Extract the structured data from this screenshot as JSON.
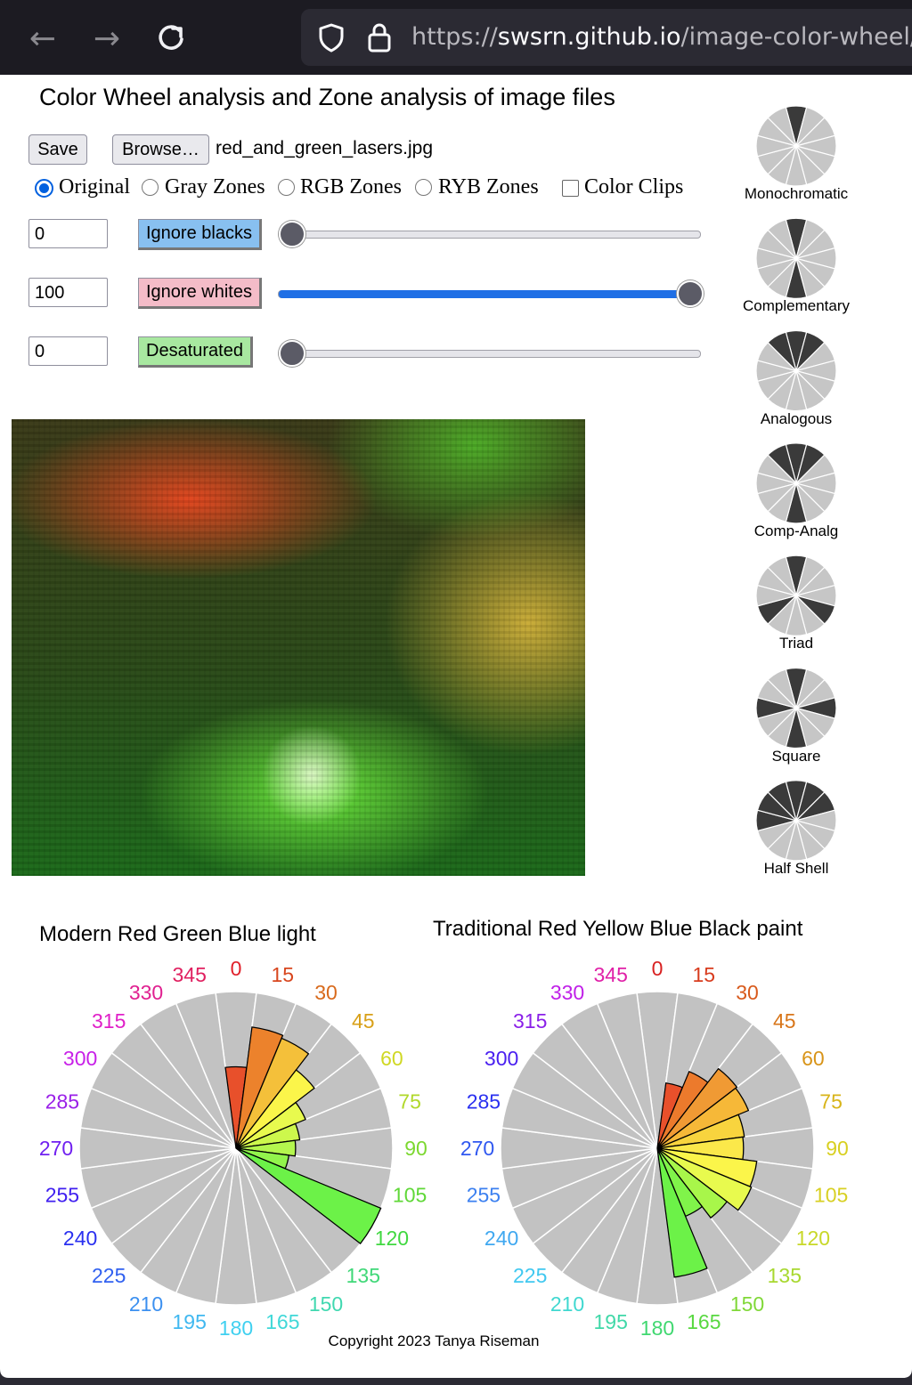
{
  "browser": {
    "back_icon": "arrow-left-icon",
    "forward_icon": "arrow-right-icon",
    "reload_icon": "reload-icon",
    "url_scheme": "https://",
    "url_host": "swsrn.github.io",
    "url_path": "/image-color-wheel/"
  },
  "page": {
    "title": "Color Wheel analysis and Zone analysis of image files",
    "save_label": "Save",
    "browse_label": "Browse…",
    "filename": "red_and_green_lasers.jpg",
    "modes": [
      {
        "label": "Original",
        "selected": true
      },
      {
        "label": "Gray Zones",
        "selected": false
      },
      {
        "label": "RGB Zones",
        "selected": false
      },
      {
        "label": "RYB Zones",
        "selected": false
      }
    ],
    "color_clips_label": "Color Clips",
    "color_clips_checked": false,
    "sliders": [
      {
        "value": "0",
        "label": "Ignore blacks",
        "fraction": 0.0,
        "color": "#88c0f0"
      },
      {
        "value": "100",
        "label": "Ignore whites",
        "fraction": 1.0,
        "color": "#f4bcc8"
      },
      {
        "value": "0",
        "label": "Desaturated",
        "fraction": 0.0,
        "color": "#a8e8a0"
      }
    ]
  },
  "harmonies": [
    {
      "label": "Monochromatic",
      "dark": [
        0
      ]
    },
    {
      "label": "Complementary",
      "dark": [
        0,
        6
      ]
    },
    {
      "label": "Analogous",
      "dark": [
        11,
        0,
        1
      ]
    },
    {
      "label": "Comp-Analg",
      "dark": [
        11,
        0,
        1,
        6
      ]
    },
    {
      "label": "Triad",
      "dark": [
        0,
        4,
        8
      ]
    },
    {
      "label": "Square",
      "dark": [
        0,
        3,
        6,
        9
      ]
    },
    {
      "label": "Half Shell",
      "dark": [
        9,
        10,
        11,
        0,
        1,
        2
      ]
    }
  ],
  "chart_data": [
    {
      "type": "polar-bar",
      "title": "Modern Red Green Blue light",
      "categories": [
        "0",
        "15",
        "30",
        "45",
        "60",
        "75",
        "90",
        "105",
        "120",
        "135",
        "150",
        "165",
        "180",
        "195",
        "210",
        "225",
        "240",
        "255",
        "270",
        "285",
        "300",
        "315",
        "330",
        "345"
      ],
      "values": [
        0.52,
        0.78,
        0.76,
        0.63,
        0.48,
        0.41,
        0.38,
        0.34,
        1.0,
        0,
        0,
        0,
        0,
        0,
        0,
        0,
        0,
        0,
        0,
        0,
        0,
        0,
        0,
        0
      ],
      "bar_colors": [
        "#e8502b",
        "#ec822c",
        "#f4c03a",
        "#fbf54a",
        "#e8fa4e",
        "#cdf84c",
        "#b4f64e",
        "#92f44c",
        "#6cf248"
      ],
      "label_colors": [
        "#e0202a",
        "#d8461e",
        "#d86a1c",
        "#d8a018",
        "#d0d824",
        "#b0d82a",
        "#7cd830",
        "#60d838",
        "#40d840",
        "#40d878",
        "#40d8b0",
        "#40d8d8",
        "#40d0f0",
        "#40b8f0",
        "#3c90f0",
        "#3060f0",
        "#2a30f0",
        "#4020f0",
        "#7020f0",
        "#9a20e8",
        "#c820e8",
        "#e020c8",
        "#e02090",
        "#e02060"
      ]
    },
    {
      "type": "polar-bar",
      "title": "Traditional Red Yellow Blue Black paint",
      "categories": [
        "0",
        "15",
        "30",
        "45",
        "60",
        "75",
        "90",
        "105",
        "120",
        "135",
        "150",
        "165",
        "180",
        "195",
        "210",
        "225",
        "240",
        "255",
        "270",
        "285",
        "300",
        "315",
        "330",
        "345"
      ],
      "values": [
        0,
        0.42,
        0.53,
        0.64,
        0.63,
        0.56,
        0.55,
        0.64,
        0.65,
        0.56,
        0.47,
        0.83,
        0,
        0,
        0,
        0,
        0,
        0,
        0,
        0,
        0,
        0,
        0,
        0
      ],
      "bar_colors": [
        "#ffffff",
        "#e8502b",
        "#ec7a2c",
        "#f09a34",
        "#f6b838",
        "#f8d43e",
        "#fbe84a",
        "#fbf54a",
        "#e8fa4e",
        "#a8f64a",
        "#80f44a",
        "#6cf248"
      ],
      "label_colors": [
        "#d82020",
        "#d83c1e",
        "#d85a1c",
        "#d8761a",
        "#d89418",
        "#d8b418",
        "#d8d020",
        "#d8d024",
        "#c8d828",
        "#a8d830",
        "#80d838",
        "#58d840",
        "#40d870",
        "#40d8a8",
        "#40d8d0",
        "#40c8f0",
        "#40a8f0",
        "#3c80f0",
        "#3058f0",
        "#2a30f0",
        "#4a20f0",
        "#8a20e8",
        "#c020e8",
        "#e020a8"
      ]
    }
  ],
  "copyright": "Copyright 2023 Tanya Riseman",
  "icons": {
    "shield": "shield-icon",
    "lock": "lock-icon"
  }
}
